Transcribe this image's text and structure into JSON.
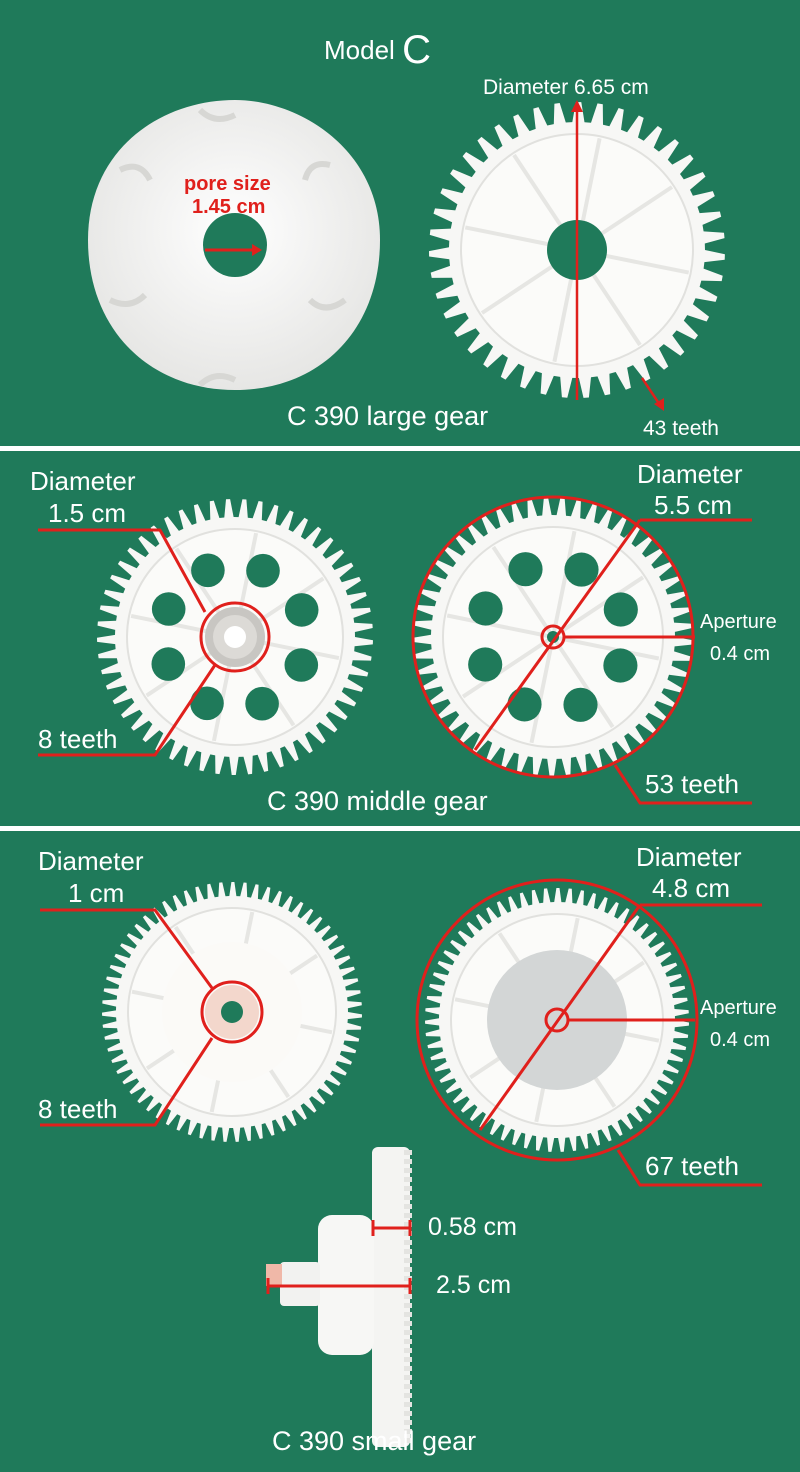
{
  "model": {
    "prefix": "Model",
    "letter": "C"
  },
  "large_gear": {
    "caption": "C 390 large gear",
    "diameter": "Diameter 6.65 cm",
    "teeth": "43 teeth",
    "pore_label": "pore size",
    "pore_value": "1.45 cm"
  },
  "middle_gear": {
    "caption": "C 390 middle gear",
    "small_diameter_label": "Diameter",
    "small_diameter_value": "1.5 cm",
    "small_teeth": "8 teeth",
    "big_diameter_label": "Diameter",
    "big_diameter_value": "5.5 cm",
    "aperture_label": "Aperture",
    "aperture_value": "0.4 cm",
    "big_teeth": "53 teeth"
  },
  "small_gear": {
    "caption": "C 390 small gear",
    "small_diameter_label": "Diameter",
    "small_diameter_value": "1 cm",
    "small_teeth": "8 teeth",
    "big_diameter_label": "Diameter",
    "big_diameter_value": "4.8 cm",
    "aperture_label": "Aperture",
    "aperture_value": "0.4 cm",
    "big_teeth": "67 teeth",
    "thickness": "0.58 cm",
    "length": "2.5 cm"
  },
  "colors": {
    "background": "#1f7a5a",
    "annotation": "#d4141c",
    "gear": "#f7f7f5"
  }
}
